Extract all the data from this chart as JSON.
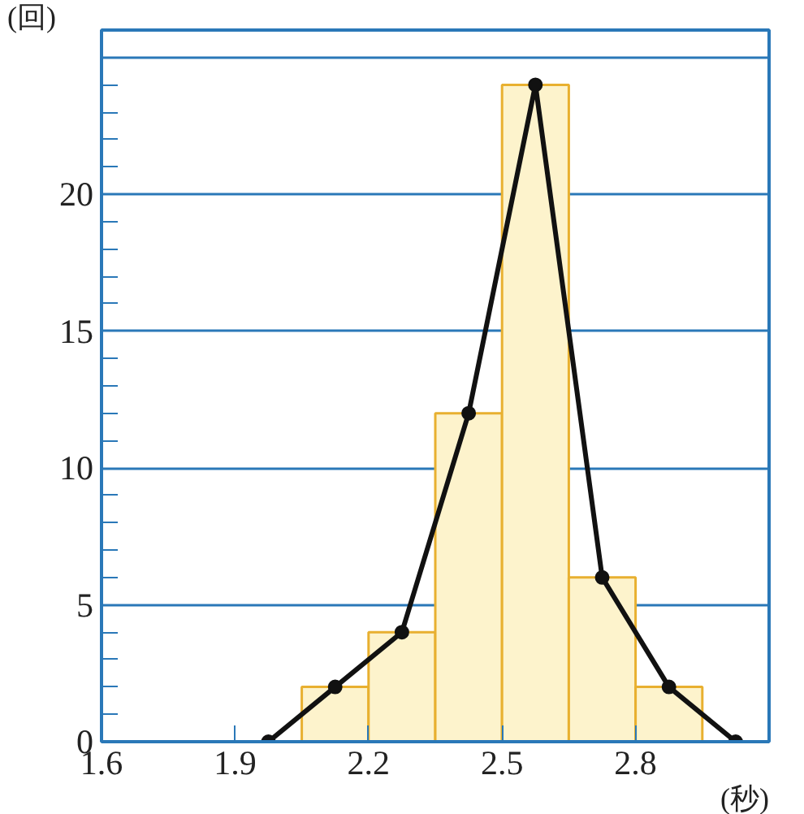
{
  "chart_data": {
    "type": "histogram",
    "xlabel": "(秒)",
    "ylabel": "(回)",
    "bins": [
      2.05,
      2.2,
      2.35,
      2.5,
      2.65,
      2.8,
      2.95
    ],
    "values": [
      2,
      4,
      12,
      24,
      6,
      2
    ],
    "color": "#fdf3cc",
    "series": [
      {
        "type": "line",
        "color": "#111111",
        "x": [
          1.975,
          2.125,
          2.275,
          2.425,
          2.575,
          2.725,
          2.875,
          3.025
        ],
        "values": [
          0,
          2,
          4,
          12,
          24,
          6,
          2,
          0
        ]
      }
    ],
    "marker": "circle",
    "xlim": [
      1.6,
      3.1
    ],
    "xticks": [
      1.6,
      1.9,
      2.2,
      2.5,
      2.8
    ],
    "ylim": [
      0,
      26
    ],
    "yticks": [
      0,
      5,
      10,
      15,
      20,
      {
        "value": 25,
        "label": null
      }
    ],
    "grid": "y"
  }
}
